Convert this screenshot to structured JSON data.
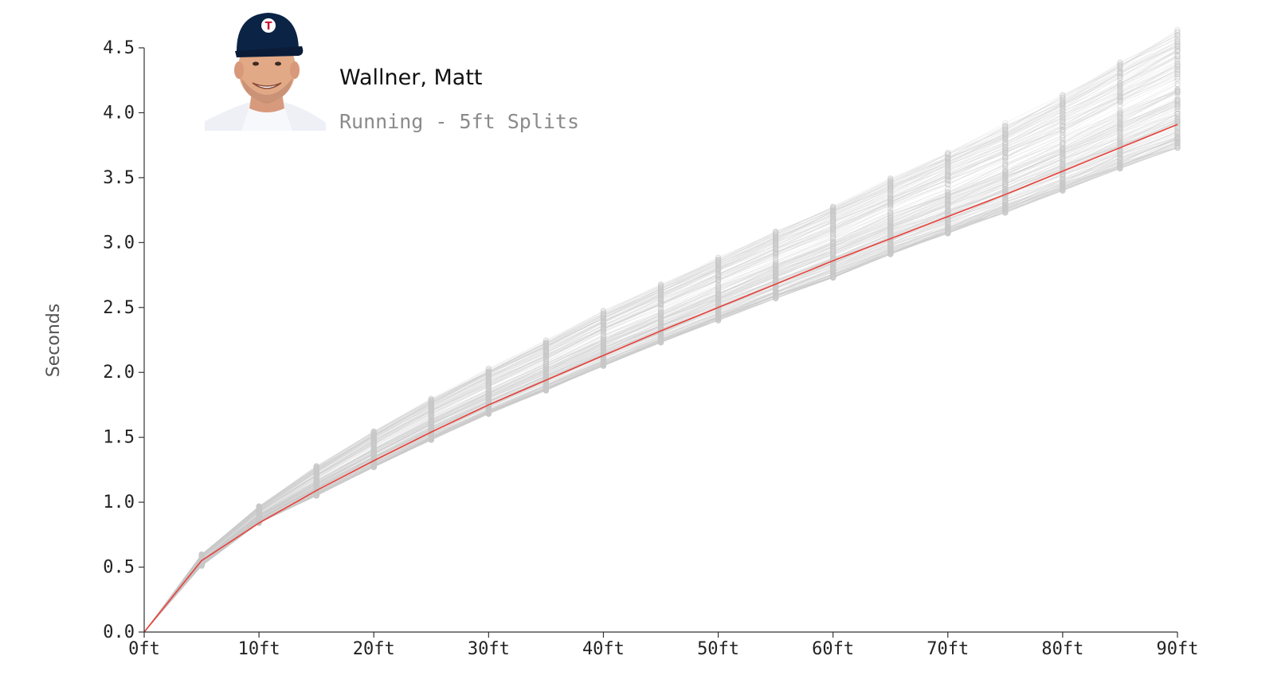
{
  "player": {
    "name": "Wallner, Matt",
    "subtitle": "Running - 5ft Splits",
    "headshot": "player-headshot-icon"
  },
  "colors": {
    "highlight_line": "#e8413a",
    "background_runs": "#c8c8c8",
    "axis": "#333333"
  },
  "chart_data": {
    "type": "line",
    "xlabel": "",
    "ylabel": "Seconds",
    "x": [
      0,
      5,
      10,
      15,
      20,
      25,
      30,
      35,
      40,
      45,
      50,
      55,
      60,
      65,
      70,
      75,
      80,
      85,
      90
    ],
    "x_tick_labels": [
      "0ft",
      "10ft",
      "20ft",
      "30ft",
      "40ft",
      "50ft",
      "60ft",
      "70ft",
      "80ft",
      "90ft"
    ],
    "x_tick_values": [
      0,
      10,
      20,
      30,
      40,
      50,
      60,
      70,
      80,
      90
    ],
    "y_tick_labels": [
      "0.0",
      "0.5",
      "1.0",
      "1.5",
      "2.0",
      "2.5",
      "3.0",
      "3.5",
      "4.0",
      "4.5"
    ],
    "y_tick_values": [
      0,
      0.5,
      1.0,
      1.5,
      2.0,
      2.5,
      3.0,
      3.5,
      4.0,
      4.5
    ],
    "xlim": [
      0,
      90
    ],
    "ylim": [
      0,
      4.5
    ],
    "grid": false,
    "highlight_series": {
      "values": [
        0,
        0.55,
        0.84,
        1.09,
        1.32,
        1.54,
        1.75,
        1.94,
        2.13,
        2.32,
        2.5,
        2.68,
        2.86,
        3.03,
        3.2,
        3.37,
        3.55,
        3.73,
        3.91
      ]
    },
    "background_runs": {
      "count_estimate": 200,
      "split_min": [
        0,
        0.51,
        0.84,
        1.05,
        1.27,
        1.48,
        1.68,
        1.86,
        2.05,
        2.23,
        2.4,
        2.57,
        2.73,
        2.91,
        3.07,
        3.23,
        3.4,
        3.57,
        3.73
      ],
      "split_max": [
        0,
        0.6,
        0.97,
        1.28,
        1.55,
        1.8,
        2.03,
        2.25,
        2.48,
        2.68,
        2.89,
        3.09,
        3.29,
        3.5,
        3.7,
        3.92,
        4.14,
        4.39,
        4.64
      ]
    }
  }
}
